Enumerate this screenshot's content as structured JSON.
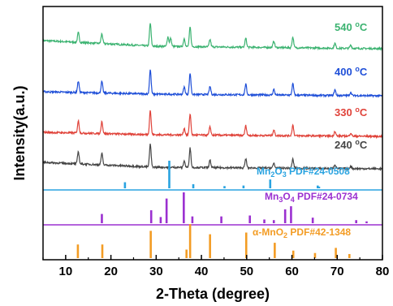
{
  "chart_data": {
    "type": "line",
    "xlabel": "2-Theta (degree)",
    "ylabel": "Intensity(a.u.)",
    "xlim": [
      5,
      80
    ],
    "xticks": [
      10,
      20,
      30,
      40,
      50,
      60,
      70,
      80
    ],
    "yticks_shown": false,
    "series": [
      {
        "name": "540 °C",
        "color": "#3cb371",
        "label_main": "540 ",
        "label_unit": "C",
        "peaks": [
          [
            12.8,
            12
          ],
          [
            18.0,
            12
          ],
          [
            28.7,
            28
          ],
          [
            32.6,
            12
          ],
          [
            33.2,
            10
          ],
          [
            36.2,
            10
          ],
          [
            37.5,
            24
          ],
          [
            41.9,
            9
          ],
          [
            49.8,
            11
          ],
          [
            56.0,
            8
          ],
          [
            60.2,
            13
          ],
          [
            69.5,
            6
          ],
          [
            73.0,
            4
          ]
        ],
        "baseline": [
          [
            5,
            10
          ],
          [
            30,
            3
          ],
          [
            80,
            0
          ]
        ]
      },
      {
        "name": "400 °C",
        "color": "#1f4fd8",
        "label_main": "400 ",
        "label_unit": "C",
        "peaks": [
          [
            12.8,
            14
          ],
          [
            18.0,
            14
          ],
          [
            28.7,
            30
          ],
          [
            36.2,
            9
          ],
          [
            37.5,
            26
          ],
          [
            41.9,
            10
          ],
          [
            49.8,
            13
          ],
          [
            56.0,
            7
          ],
          [
            60.2,
            14
          ],
          [
            69.5,
            7
          ],
          [
            73.0,
            4
          ]
        ],
        "baseline": [
          [
            5,
            5
          ],
          [
            30,
            2
          ],
          [
            80,
            0
          ]
        ]
      },
      {
        "name": "330 °C",
        "color": "#e0433a",
        "label_main": "330 ",
        "label_unit": "C",
        "peaks": [
          [
            12.8,
            15
          ],
          [
            18.0,
            15
          ],
          [
            28.7,
            30
          ],
          [
            36.2,
            8
          ],
          [
            37.5,
            26
          ],
          [
            41.9,
            10
          ],
          [
            49.8,
            12
          ],
          [
            56.0,
            7
          ],
          [
            60.2,
            13
          ],
          [
            69.5,
            6
          ],
          [
            73.0,
            4
          ]
        ],
        "baseline": [
          [
            5,
            5
          ],
          [
            30,
            2
          ],
          [
            80,
            0
          ]
        ]
      },
      {
        "name": "240 °C",
        "color": "#454545",
        "label_main": "240 ",
        "label_unit": "C",
        "peaks": [
          [
            12.8,
            15
          ],
          [
            18.0,
            14
          ],
          [
            28.7,
            28
          ],
          [
            36.2,
            8
          ],
          [
            37.5,
            24
          ],
          [
            41.9,
            9
          ],
          [
            49.8,
            11
          ],
          [
            56.0,
            6
          ],
          [
            60.2,
            11
          ],
          [
            69.5,
            5
          ],
          [
            73.0,
            3
          ]
        ],
        "baseline": [
          [
            5,
            8
          ],
          [
            30,
            2
          ],
          [
            80,
            0
          ]
        ]
      }
    ],
    "references": [
      {
        "name": "Mn2O3 PDF#24-0508",
        "color": "#29a3e0",
        "label_parts": [
          "Mn",
          "2",
          "O",
          "3",
          " PDF#24-0508"
        ],
        "lines": [
          [
            23.1,
            0.22
          ],
          [
            32.9,
            1.0
          ],
          [
            38.2,
            0.15
          ],
          [
            45.1,
            0.08
          ],
          [
            49.3,
            0.1
          ],
          [
            55.2,
            0.32
          ],
          [
            65.7,
            0.1
          ],
          [
            66.0,
            0.06
          ]
        ]
      },
      {
        "name": "Mn3O4 PDF#24-0734",
        "color": "#9b30d0",
        "label_parts": [
          "Mn",
          "3",
          "O",
          "4",
          " PDF#24-0734"
        ],
        "lines": [
          [
            18.0,
            0.3
          ],
          [
            28.9,
            0.42
          ],
          [
            31.0,
            0.2
          ],
          [
            32.3,
            0.8
          ],
          [
            36.1,
            1.0
          ],
          [
            38.0,
            0.22
          ],
          [
            44.4,
            0.22
          ],
          [
            50.7,
            0.25
          ],
          [
            53.9,
            0.12
          ],
          [
            56.0,
            0.1
          ],
          [
            58.5,
            0.45
          ],
          [
            59.8,
            0.55
          ],
          [
            64.6,
            0.18
          ],
          [
            74.2,
            0.1
          ],
          [
            76.5,
            0.06
          ]
        ]
      },
      {
        "name": "α-MnO2 PDF#42-1348",
        "color": "#f39c24",
        "label_parts": [
          "α-MnO",
          "2",
          "",
          "",
          " PDF#42-1348"
        ],
        "lines": [
          [
            12.7,
            0.4
          ],
          [
            18.1,
            0.4
          ],
          [
            28.8,
            0.8
          ],
          [
            36.7,
            0.25
          ],
          [
            37.5,
            1.0
          ],
          [
            41.9,
            0.7
          ],
          [
            49.9,
            0.75
          ],
          [
            56.2,
            0.45
          ],
          [
            60.3,
            0.22
          ],
          [
            65.1,
            0.15
          ],
          [
            69.7,
            0.3
          ],
          [
            72.7,
            0.12
          ]
        ]
      }
    ]
  }
}
